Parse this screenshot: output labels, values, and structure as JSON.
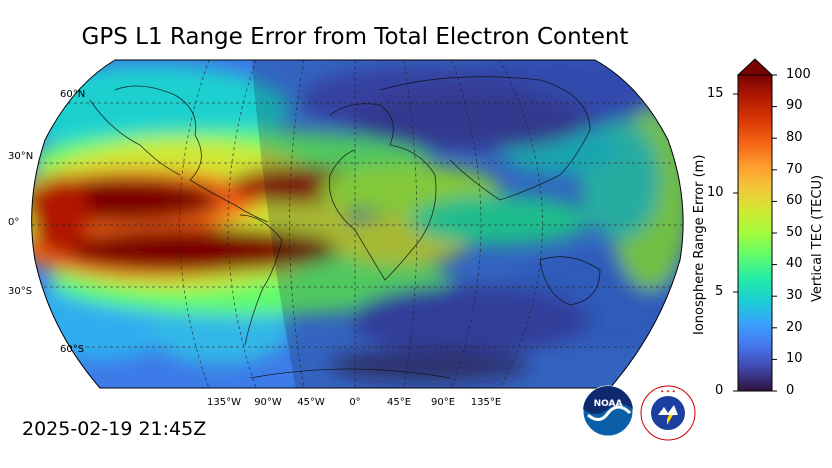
{
  "title": "GPS L1 Range Error from Total Electron Content",
  "timestamp": "2025-02-19 21:45Z",
  "map": {
    "projection": "Robinson",
    "latitude_labels": [
      "60°N",
      "30°N",
      "0°",
      "30°S",
      "60°S"
    ],
    "longitude_labels": [
      "135°W",
      "90°W",
      "45°W",
      "0°",
      "45°E",
      "90°E",
      "135°E"
    ],
    "nightside_shading": true
  },
  "colorbar": {
    "right_title": "Vertical TEC (TECU)",
    "right_ticks": [
      "0",
      "10",
      "20",
      "30",
      "40",
      "50",
      "60",
      "70",
      "80",
      "90",
      "100"
    ],
    "left_title": "Ionosphere Range Error (m)",
    "left_ticks": [
      "0",
      "5",
      "10",
      "15"
    ],
    "colors": [
      "#30123b",
      "#4145ab",
      "#4675ed",
      "#39a2fc",
      "#1bcfd4",
      "#24eca6",
      "#61fc6c",
      "#a4fc3b",
      "#d1e834",
      "#f3c63a",
      "#fe9b2d",
      "#f36315",
      "#d93806",
      "#b11901",
      "#7a0403"
    ]
  },
  "logos": {
    "noaa_text": "NOAA",
    "nws_text": "NATIONAL WEATHER SERVICE"
  }
}
